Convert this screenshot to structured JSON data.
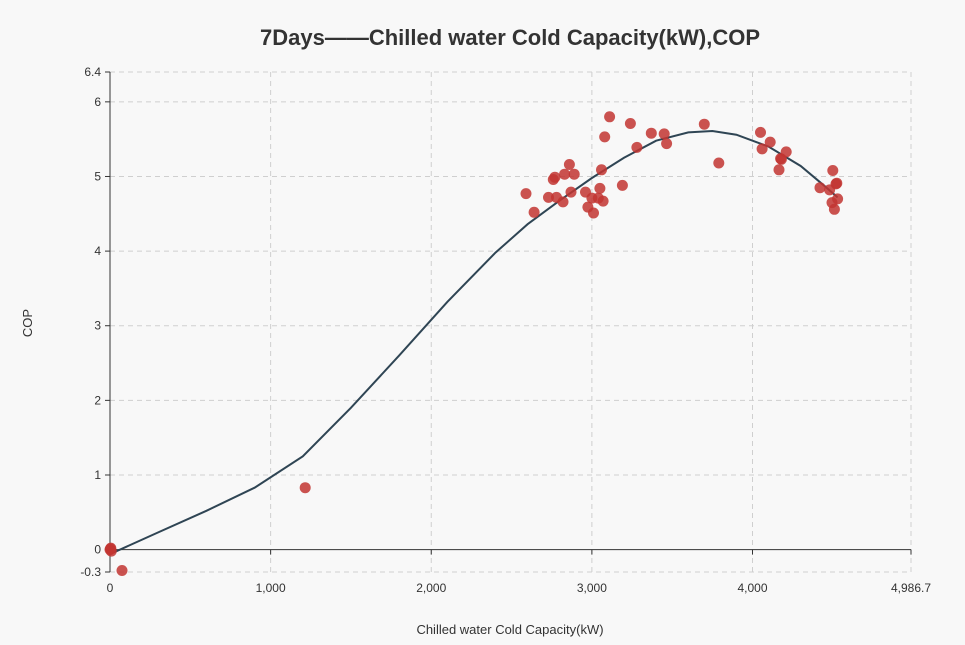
{
  "chart_data": {
    "type": "scatter",
    "title": "7Days——Chilled water Cold Capacity(kW),COP",
    "xlabel": "Chilled water Cold Capacity(kW)",
    "ylabel": "COP",
    "xlim": [
      0,
      4986.7
    ],
    "ylim": [
      -0.3,
      6.4
    ],
    "x_ticks": [
      0,
      1000,
      2000,
      3000,
      4000,
      4986.7
    ],
    "x_tick_labels": [
      "0",
      "1,000",
      "2,000",
      "3,000",
      "4,000",
      "4,986.7"
    ],
    "y_ticks": [
      -0.3,
      0,
      1,
      2,
      3,
      4,
      5,
      6,
      6.4
    ],
    "y_tick_labels": [
      "-0.3",
      "0",
      "1",
      "2",
      "3",
      "4",
      "5",
      "6",
      "6.4"
    ],
    "grid": true,
    "colors": {
      "points": "#c23531",
      "line": "#2f4554"
    },
    "series": [
      {
        "type": "scatter",
        "points": [
          [
            0,
            0
          ],
          [
            5,
            0.02
          ],
          [
            8,
            -0.02
          ],
          [
            3,
            0.01
          ],
          [
            75,
            -0.28
          ],
          [
            1215,
            0.83
          ],
          [
            2590,
            4.77
          ],
          [
            2640,
            4.52
          ],
          [
            2730,
            4.72
          ],
          [
            2760,
            4.96
          ],
          [
            2770,
            4.99
          ],
          [
            2780,
            4.72
          ],
          [
            2820,
            4.66
          ],
          [
            2830,
            5.03
          ],
          [
            2860,
            5.16
          ],
          [
            2870,
            4.79
          ],
          [
            2890,
            5.03
          ],
          [
            2960,
            4.79
          ],
          [
            2975,
            4.59
          ],
          [
            3000,
            4.71
          ],
          [
            3010,
            4.51
          ],
          [
            3040,
            4.71
          ],
          [
            3050,
            4.84
          ],
          [
            3060,
            5.09
          ],
          [
            3070,
            4.67
          ],
          [
            3080,
            5.53
          ],
          [
            3110,
            5.8
          ],
          [
            3190,
            4.88
          ],
          [
            3240,
            5.71
          ],
          [
            3280,
            5.39
          ],
          [
            3370,
            5.58
          ],
          [
            3450,
            5.57
          ],
          [
            3465,
            5.44
          ],
          [
            3700,
            5.7
          ],
          [
            3790,
            5.18
          ],
          [
            4050,
            5.59
          ],
          [
            4060,
            5.37
          ],
          [
            4110,
            5.46
          ],
          [
            4165,
            5.09
          ],
          [
            4175,
            5.24
          ],
          [
            4180,
            5.23
          ],
          [
            4210,
            5.33
          ],
          [
            4420,
            4.85
          ],
          [
            4480,
            4.82
          ],
          [
            4495,
            4.65
          ],
          [
            4500,
            5.08
          ],
          [
            4510,
            4.56
          ],
          [
            4520,
            4.9
          ],
          [
            4525,
            4.91
          ],
          [
            4530,
            4.7
          ]
        ]
      },
      {
        "type": "line",
        "points": [
          [
            0,
            -0.06
          ],
          [
            300,
            0.23
          ],
          [
            600,
            0.52
          ],
          [
            900,
            0.83
          ],
          [
            1200,
            1.25
          ],
          [
            1500,
            1.9
          ],
          [
            1800,
            2.6
          ],
          [
            2100,
            3.32
          ],
          [
            2400,
            3.98
          ],
          [
            2600,
            4.36
          ],
          [
            2800,
            4.68
          ],
          [
            3000,
            4.98
          ],
          [
            3200,
            5.25
          ],
          [
            3400,
            5.48
          ],
          [
            3600,
            5.59
          ],
          [
            3750,
            5.61
          ],
          [
            3900,
            5.56
          ],
          [
            4100,
            5.4
          ],
          [
            4300,
            5.14
          ],
          [
            4450,
            4.87
          ],
          [
            4530,
            4.72
          ]
        ]
      }
    ]
  }
}
